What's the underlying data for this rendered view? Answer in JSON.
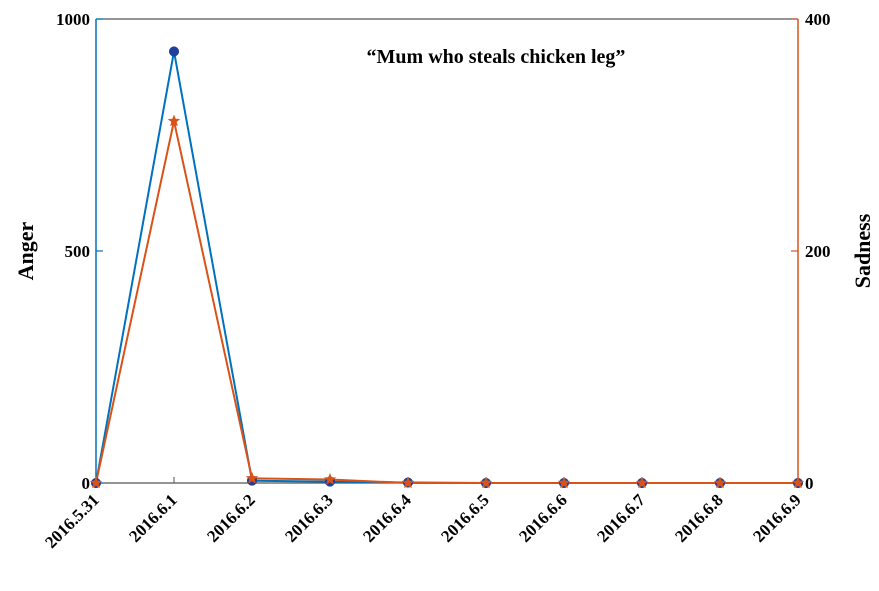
{
  "chart_data": {
    "type": "line",
    "title": "“Mum who steals chicken leg”",
    "categories": [
      "2016.5.31",
      "2016.6.1",
      "2016.6.2",
      "2016.6.3",
      "2016.6.4",
      "2016.6.5",
      "2016.6.6",
      "2016.6.7",
      "2016.6.8",
      "2016.6.9"
    ],
    "y_left": {
      "label": "Anger",
      "lim": [
        0,
        1000
      ],
      "ticks": [
        0,
        500,
        1000
      ],
      "tick_labels": [
        "0",
        "500",
        "1000"
      ]
    },
    "y_right": {
      "label": "Sadness",
      "lim": [
        0,
        400
      ],
      "ticks": [
        0,
        200,
        400
      ],
      "tick_labels": [
        "0",
        "200",
        "400"
      ]
    },
    "series": [
      {
        "axis": "left",
        "color": "#0072BD",
        "marker": "circle",
        "marker_color": "#1f3f9a",
        "values": [
          0,
          930,
          5,
          3,
          1,
          0,
          0,
          0,
          0,
          0
        ]
      },
      {
        "axis": "right",
        "color": "#D95319",
        "marker": "star",
        "marker_color": "#D95319",
        "values": [
          0,
          312,
          4,
          3,
          0,
          0,
          0,
          0,
          0,
          0
        ]
      }
    ],
    "grid": false,
    "legend": "none"
  }
}
